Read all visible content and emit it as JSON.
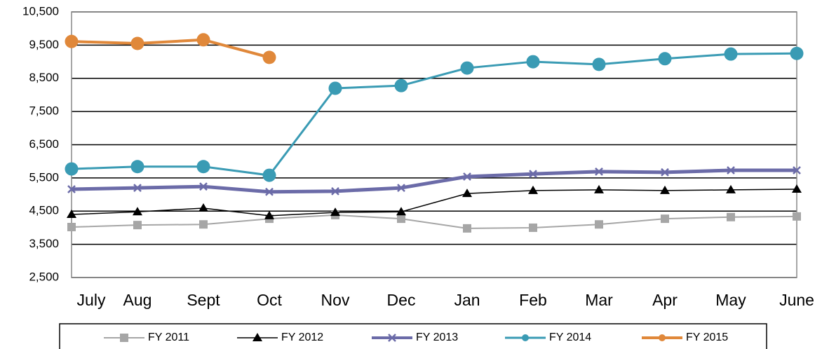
{
  "chart_data": {
    "type": "line",
    "categories": [
      "July",
      "Aug",
      "Sept",
      "Oct",
      "Nov",
      "Dec",
      "Jan",
      "Feb",
      "Mar",
      "Apr",
      "May",
      "June"
    ],
    "series": [
      {
        "name": "FY 2011",
        "color": "#a6a6a6",
        "marker": "square",
        "width": 2,
        "values": [
          4020,
          4080,
          4100,
          4270,
          4380,
          4270,
          3980,
          4000,
          4100,
          4270,
          4320,
          4340
        ]
      },
      {
        "name": "FY 2012",
        "color": "#000000",
        "marker": "triangle",
        "width": 1.5,
        "values": [
          4400,
          4480,
          4590,
          4360,
          4460,
          4480,
          5030,
          5120,
          5140,
          5120,
          5140,
          5160
        ]
      },
      {
        "name": "FY 2013",
        "color": "#6b6ba8",
        "marker": "x",
        "width": 5,
        "values": [
          5160,
          5200,
          5240,
          5080,
          5100,
          5200,
          5540,
          5620,
          5690,
          5670,
          5730,
          5730
        ]
      },
      {
        "name": "FY 2014",
        "color": "#3a9bb4",
        "marker": "circle",
        "width": 3,
        "values": [
          5770,
          5840,
          5840,
          5580,
          8200,
          8280,
          8810,
          9000,
          8920,
          9090,
          9230,
          9250
        ]
      },
      {
        "name": "FY 2015",
        "color": "#e0883a",
        "marker": "circle",
        "width": 4,
        "values": [
          9610,
          9550,
          9660,
          9130,
          null,
          null,
          null,
          null,
          null,
          null,
          null,
          null
        ]
      }
    ],
    "ylim": [
      2500,
      10500
    ],
    "yticks": [
      {
        "value": 2500,
        "label": "2,500"
      },
      {
        "value": 3500,
        "label": "3,500"
      },
      {
        "value": 4500,
        "label": "4,500"
      },
      {
        "value": 5500,
        "label": "5,500"
      },
      {
        "value": 6500,
        "label": "6,500"
      },
      {
        "value": 7500,
        "label": "7,500"
      },
      {
        "value": 8500,
        "label": "8,500"
      },
      {
        "value": 9500,
        "label": "9,500"
      },
      {
        "value": 10500,
        "label": "10,500"
      }
    ],
    "grid": true,
    "legend": "bottom"
  }
}
